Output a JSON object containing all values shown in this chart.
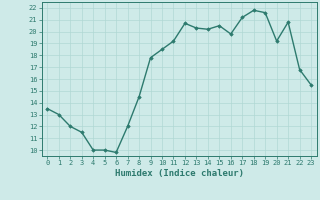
{
  "x": [
    0,
    1,
    2,
    3,
    4,
    5,
    6,
    7,
    8,
    9,
    10,
    11,
    12,
    13,
    14,
    15,
    16,
    17,
    18,
    19,
    20,
    21,
    22,
    23
  ],
  "y": [
    13.5,
    13.0,
    12.0,
    11.5,
    10.0,
    10.0,
    9.8,
    12.0,
    14.5,
    17.8,
    18.5,
    19.2,
    20.7,
    20.3,
    20.2,
    20.5,
    19.8,
    21.2,
    21.8,
    21.6,
    19.2,
    20.8,
    16.8,
    15.5
  ],
  "xlabel": "Humidex (Indice chaleur)",
  "xlim": [
    -0.5,
    23.5
  ],
  "ylim": [
    9.5,
    22.5
  ],
  "yticks": [
    10,
    11,
    12,
    13,
    14,
    15,
    16,
    17,
    18,
    19,
    20,
    21,
    22
  ],
  "xticks": [
    0,
    1,
    2,
    3,
    4,
    5,
    6,
    7,
    8,
    9,
    10,
    11,
    12,
    13,
    14,
    15,
    16,
    17,
    18,
    19,
    20,
    21,
    22,
    23
  ],
  "line_color": "#2d7a6e",
  "marker": "D",
  "marker_size": 1.8,
  "bg_color": "#ceeae8",
  "grid_color": "#b0d8d4",
  "axis_color": "#2d7a6e",
  "tick_label_color": "#2d7a6e",
  "xlabel_color": "#2d7a6e",
  "line_width": 1.0,
  "tick_fontsize": 5.0,
  "xlabel_fontsize": 6.5
}
